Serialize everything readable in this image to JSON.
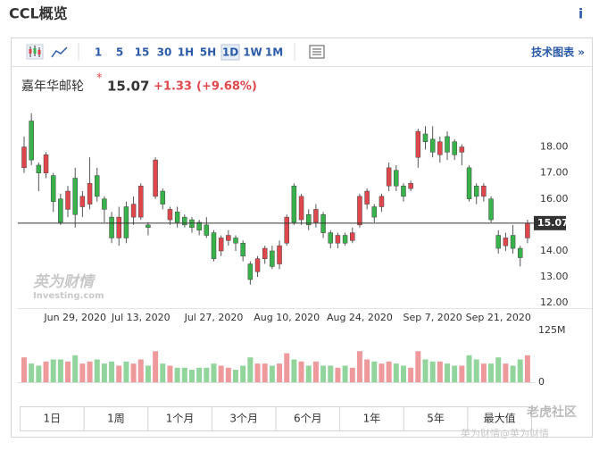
{
  "header": {
    "title": "CCL概览",
    "info": "i"
  },
  "toolbar": {
    "intervals": [
      "1",
      "5",
      "15",
      "30",
      "1H",
      "5H",
      "1D",
      "1W",
      "1M"
    ],
    "active": "1D",
    "technical": "技术图表 »"
  },
  "quote": {
    "name": "嘉年华邮轮",
    "star": "*",
    "change": "+1.33",
    "change_percent": "(+9.68%)"
  },
  "ranges": [
    "1日",
    "1周",
    "1个月",
    "3个月",
    "6个月",
    "1年",
    "5年",
    "最大值"
  ],
  "watermark": {
    "brand": "英为财情",
    "site": "Investing.com"
  },
  "footer": {
    "community": "老虎社区",
    "credit": "英为财情@英为财情"
  },
  "chart_data": {
    "type": "candlestick",
    "categories": [
      null,
      null,
      null,
      null,
      null,
      null,
      null,
      "Jun 29, 2020",
      null,
      null,
      null,
      null,
      null,
      null,
      null,
      null,
      "Jul 13, 2020",
      null,
      null,
      null,
      null,
      null,
      null,
      null,
      null,
      null,
      "Jul 27, 2020",
      null,
      null,
      null,
      null,
      null,
      null,
      null,
      null,
      null,
      "Aug 10, 2020",
      null,
      null,
      null,
      null,
      null,
      null,
      null,
      null,
      null,
      "Aug 24, 2020",
      null,
      null,
      null,
      null,
      null,
      null,
      null,
      null,
      null,
      "Sep 7, 2020",
      null,
      null,
      null,
      null,
      null,
      null,
      null,
      null,
      "Sep 21, 2020",
      null,
      null,
      null,
      null
    ],
    "open": [
      17.2,
      19.0,
      17.3,
      17.0,
      16.9,
      16.0,
      15.6,
      16.8,
      15.7,
      15.8,
      16.9,
      16.0,
      15.3,
      14.5,
      15.7,
      15.3,
      15.3,
      15.0,
      16.1,
      16.3,
      15.2,
      15.5,
      15.3,
      15.2,
      15.1,
      15.0,
      14.7,
      14.0,
      14.4,
      14.5,
      14.3,
      13.5,
      13.2,
      13.7,
      14.0,
      13.5,
      14.3,
      16.5,
      15.2,
      15.4,
      15.1,
      15.4,
      14.7,
      14.3,
      14.6,
      14.4,
      15.0,
      15.8,
      15.7,
      15.7,
      16.5,
      17.1,
      16.5,
      16.4,
      17.6,
      18.5,
      18.3,
      17.7,
      18.4,
      18.2,
      17.8,
      17.2,
      16.5,
      16.1,
      16.0,
      14.6,
      14.2,
      14.6,
      14.1,
      14.5
    ],
    "high": [
      18.4,
      19.3,
      17.4,
      17.8,
      17.0,
      16.2,
      16.5,
      17.2,
      16.3,
      17.6,
      17.2,
      16.1,
      15.5,
      15.7,
      15.9,
      16.1,
      16.6,
      15.1,
      17.6,
      16.4,
      15.7,
      15.7,
      15.4,
      15.3,
      15.2,
      15.3,
      14.8,
      14.6,
      14.8,
      14.6,
      14.4,
      13.6,
      13.8,
      14.2,
      14.2,
      14.4,
      15.4,
      16.6,
      16.2,
      15.6,
      15.8,
      15.5,
      14.8,
      14.7,
      14.7,
      14.9,
      16.2,
      16.4,
      15.8,
      16.2,
      17.4,
      17.3,
      16.6,
      16.7,
      18.7,
      18.8,
      18.8,
      18.4,
      18.6,
      18.3,
      18.1,
      17.3,
      16.6,
      16.6,
      16.1,
      14.8,
      14.7,
      15.0,
      14.2,
      15.2
    ],
    "low": [
      17.0,
      17.3,
      16.3,
      16.8,
      15.5,
      15.0,
      15.3,
      14.9,
      15.3,
      15.6,
      15.9,
      15.1,
      14.3,
      14.2,
      14.3,
      15.0,
      15.2,
      14.6,
      16.0,
      15.6,
      15.0,
      14.9,
      14.9,
      14.7,
      14.6,
      14.5,
      13.6,
      13.8,
      14.2,
      14.0,
      13.6,
      12.7,
      13.0,
      13.5,
      13.3,
      13.3,
      14.2,
      15.0,
      15.0,
      14.8,
      14.9,
      14.5,
      14.1,
      14.1,
      14.2,
      14.3,
      14.9,
      15.6,
      15.1,
      15.5,
      16.3,
      16.3,
      15.9,
      16.3,
      17.2,
      17.9,
      17.6,
      17.4,
      17.5,
      17.5,
      17.3,
      15.9,
      15.8,
      15.9,
      15.1,
      13.9,
      14.0,
      13.9,
      13.4,
      14.3
    ],
    "close": [
      18.0,
      17.5,
      17.0,
      17.7,
      15.9,
      15.1,
      16.3,
      15.4,
      16.1,
      16.6,
      16.1,
      15.6,
      14.5,
      15.3,
      14.5,
      15.8,
      16.5,
      14.9,
      17.5,
      15.8,
      15.6,
      15.1,
      15.0,
      14.9,
      14.8,
      14.6,
      13.7,
      14.5,
      14.6,
      14.3,
      13.8,
      12.9,
      13.7,
      14.1,
      13.4,
      14.2,
      15.3,
      15.1,
      16.1,
      15.0,
      15.6,
      14.7,
      14.3,
      14.6,
      14.3,
      14.7,
      16.1,
      16.3,
      15.3,
      16.1,
      17.2,
      16.5,
      16.1,
      16.6,
      18.6,
      18.2,
      17.8,
      18.2,
      17.8,
      17.7,
      18.0,
      16.0,
      16.1,
      16.5,
      15.2,
      14.1,
      14.5,
      14.1,
      13.74,
      15.07
    ],
    "volume": [
      60,
      45,
      40,
      50,
      55,
      55,
      50,
      65,
      45,
      50,
      55,
      45,
      50,
      40,
      50,
      45,
      55,
      40,
      75,
      45,
      40,
      35,
      35,
      30,
      35,
      35,
      45,
      40,
      35,
      30,
      40,
      60,
      45,
      45,
      40,
      45,
      70,
      55,
      50,
      40,
      50,
      40,
      40,
      35,
      40,
      35,
      75,
      55,
      50,
      45,
      50,
      45,
      40,
      35,
      75,
      55,
      50,
      50,
      45,
      40,
      40,
      65,
      55,
      45,
      45,
      60,
      45,
      40,
      55,
      65
    ],
    "ylim": [
      11.8,
      19.6
    ],
    "yticks": [
      {
        "value": 12,
        "label": "12.00"
      },
      {
        "value": 13,
        "label": "13.00"
      },
      {
        "value": 14,
        "label": "14.00"
      },
      {
        "value": 16,
        "label": "16.00"
      },
      {
        "value": 17,
        "label": "17.00"
      },
      {
        "value": 18,
        "label": "18.00"
      }
    ],
    "volume_ylim": [
      0,
      125
    ],
    "volume_ticks": [
      0,
      {
        "value": 125,
        "label": "125M"
      }
    ],
    "up_color": "#e0474c",
    "down_color": "#38b24a"
  }
}
